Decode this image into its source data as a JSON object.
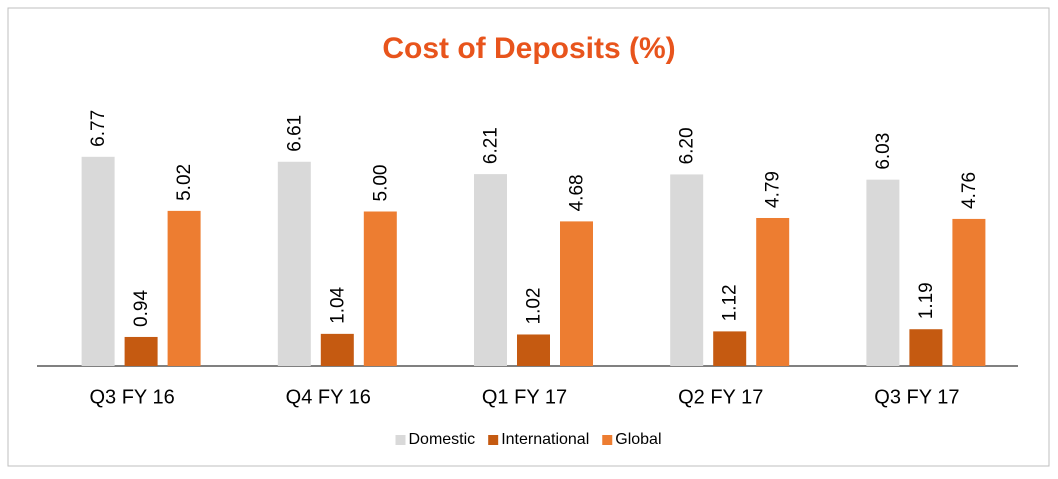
{
  "chart_data": {
    "type": "bar",
    "title": "Cost of Deposits (%)",
    "categories": [
      "Q3 FY 16",
      "Q4 FY 16",
      "Q1 FY 17",
      "Q2 FY 17",
      "Q3 FY 17"
    ],
    "series": [
      {
        "name": "Domestic",
        "color": "#d9d9d9",
        "values": [
          6.77,
          6.61,
          6.21,
          6.2,
          6.03
        ],
        "value_labels": [
          "6.77",
          "6.61",
          "6.21",
          "6.20",
          "6.03"
        ]
      },
      {
        "name": "International",
        "color": "#c55a11",
        "values": [
          0.94,
          1.04,
          1.02,
          1.12,
          1.19
        ],
        "value_labels": [
          "0.94",
          "1.04",
          "1.02",
          "1.12",
          "1.19"
        ]
      },
      {
        "name": "Global",
        "color": "#ed7d31",
        "values": [
          5.02,
          5.0,
          4.68,
          4.79,
          4.76
        ],
        "value_labels": [
          "5.02",
          "5.00",
          "4.68",
          "4.79",
          "4.76"
        ]
      }
    ],
    "legend": "bottom"
  }
}
